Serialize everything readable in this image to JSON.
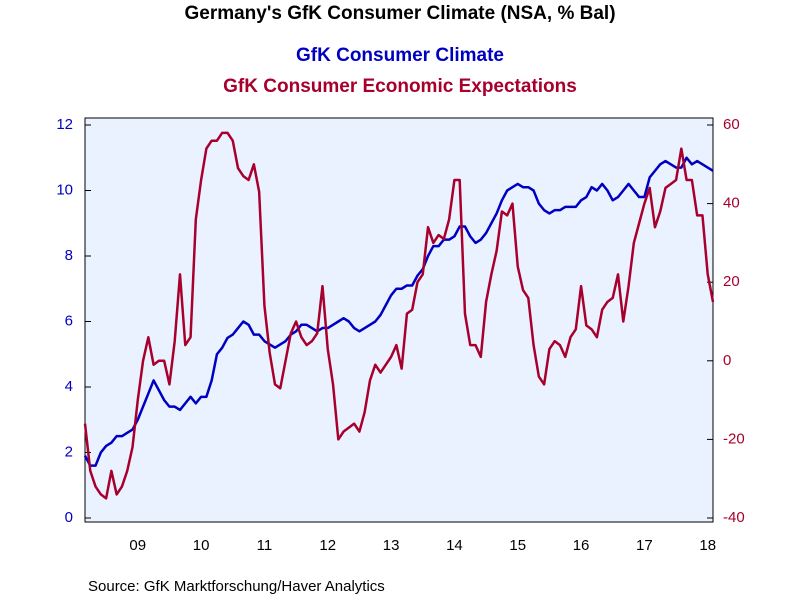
{
  "chart_data": {
    "type": "line",
    "title": "Germany's GfK Consumer Climate (NSA, % Bal)",
    "source": "Source:  GfK Marktforschung/Haver Analytics",
    "categories": [
      null,
      null,
      null,
      null,
      null,
      null,
      null,
      null,
      null,
      null,
      "09",
      null,
      null,
      null,
      null,
      null,
      null,
      null,
      null,
      null,
      null,
      null,
      "10",
      null,
      null,
      null,
      null,
      null,
      null,
      null,
      null,
      null,
      null,
      null,
      "11",
      null,
      null,
      null,
      null,
      null,
      null,
      null,
      null,
      null,
      null,
      null,
      "12",
      null,
      null,
      null,
      null,
      null,
      null,
      null,
      null,
      null,
      null,
      null,
      "13",
      null,
      null,
      null,
      null,
      null,
      null,
      null,
      null,
      null,
      null,
      null,
      "14",
      null,
      null,
      null,
      null,
      null,
      null,
      null,
      null,
      null,
      null,
      null,
      "15",
      null,
      null,
      null,
      null,
      null,
      null,
      null,
      null,
      null,
      null,
      null,
      "16",
      null,
      null,
      null,
      null,
      null,
      null,
      null,
      null,
      null,
      null,
      null,
      "17",
      null,
      null,
      null,
      null,
      null,
      null,
      null,
      null,
      null,
      null,
      null,
      "18",
      null
    ],
    "ylim": [
      0,
      12
    ],
    "yticks": [
      0,
      2,
      4,
      6,
      8,
      10,
      12
    ],
    "y2lim": [
      -40,
      60
    ],
    "y2ticks": [
      -40,
      -20,
      0,
      20,
      40,
      60
    ],
    "series": [
      {
        "name": "GfK Consumer Climate",
        "color": "#0000c0",
        "axis": "y",
        "values": [
          1.9,
          1.6,
          1.6,
          2.0,
          2.2,
          2.3,
          2.5,
          2.5,
          2.6,
          2.7,
          3.0,
          3.4,
          3.8,
          4.2,
          3.9,
          3.6,
          3.4,
          3.4,
          3.3,
          3.5,
          3.7,
          3.5,
          3.7,
          3.7,
          4.2,
          5.0,
          5.2,
          5.5,
          5.6,
          5.8,
          6.0,
          5.9,
          5.6,
          5.6,
          5.4,
          5.3,
          5.2,
          5.3,
          5.4,
          5.6,
          5.7,
          5.9,
          5.9,
          5.8,
          5.7,
          5.8,
          5.8,
          5.9,
          6.0,
          6.1,
          6.0,
          5.8,
          5.7,
          5.8,
          5.9,
          6.0,
          6.2,
          6.5,
          6.8,
          7.0,
          7.0,
          7.1,
          7.1,
          7.4,
          7.6,
          8.0,
          8.3,
          8.3,
          8.5,
          8.5,
          8.6,
          8.9,
          8.9,
          8.6,
          8.4,
          8.5,
          8.7,
          9.0,
          9.3,
          9.7,
          10.0,
          10.1,
          10.2,
          10.1,
          10.1,
          10.0,
          9.6,
          9.4,
          9.3,
          9.4,
          9.4,
          9.5,
          9.5,
          9.5,
          9.7,
          9.8,
          10.1,
          10.0,
          10.2,
          10.0,
          9.7,
          9.8,
          10.0,
          10.2,
          10.0,
          9.8,
          9.8,
          10.4,
          10.6,
          10.8,
          10.9,
          10.8,
          10.7,
          10.7,
          11.0,
          10.8,
          10.9,
          10.8,
          10.7,
          10.6
        ]
      },
      {
        "name": "GfK Consumer Economic Expectations",
        "color": "#a8002c",
        "axis": "y2",
        "values": [
          -16,
          -28,
          -32,
          -34,
          -35,
          -28,
          -34,
          -32,
          -28,
          -22,
          -10,
          0,
          6,
          -1,
          0,
          0,
          -6,
          5,
          22,
          4,
          6,
          36,
          46,
          54,
          56,
          56,
          58,
          58,
          56,
          49,
          47,
          46,
          50,
          43,
          14,
          2,
          -6,
          -7,
          0,
          7,
          10,
          6,
          4,
          5,
          7,
          19,
          3,
          -6,
          -20,
          -18,
          -17,
          -16,
          -18,
          -13,
          -5,
          -1,
          -3,
          -1,
          1,
          4,
          -2,
          12,
          13,
          20,
          22,
          34,
          30,
          32,
          31,
          36,
          46,
          46,
          12,
          4,
          4,
          1,
          15,
          22,
          28,
          38,
          37,
          40,
          24,
          18,
          16,
          4,
          -4,
          -6,
          3,
          5,
          4,
          1,
          6,
          8,
          19,
          9,
          8,
          6,
          13,
          15,
          16,
          22,
          10,
          19,
          30,
          35,
          40,
          44,
          34,
          38,
          44,
          45,
          46,
          54,
          46,
          46,
          37,
          37,
          22,
          15
        ]
      }
    ]
  }
}
